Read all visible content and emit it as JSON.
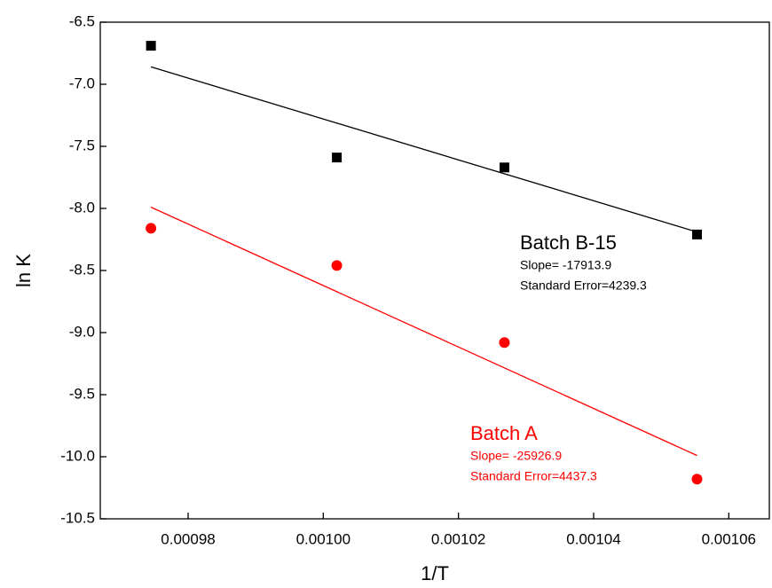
{
  "chart_data": {
    "type": "scatter",
    "xlabel": "1/T",
    "ylabel": "ln K",
    "xlim": [
      0.000967,
      0.001066
    ],
    "ylim": [
      -10.5,
      -6.5
    ],
    "xticks": [
      0.00098,
      {
        "value": 0.001,
        "label": "0.00100"
      },
      0.00102,
      0.00104,
      0.00106
    ],
    "yticks": [
      -6.5,
      {
        "value": -7,
        "label": "-7.0"
      },
      -7.5,
      {
        "value": -8,
        "label": "-8.0"
      },
      -8.5,
      {
        "value": -9,
        "label": "-9.0"
      },
      -9.5,
      {
        "value": -10,
        "label": "-10.0"
      },
      -10.5
    ],
    "x": [
      0.0009745,
      0.001002,
      0.0010268,
      0.0010553
    ],
    "series": [
      {
        "name": "Batch B-15",
        "color": "#000000",
        "marker": "square",
        "values": [
          -6.69,
          -7.59,
          -7.67,
          -8.21
        ],
        "fit": [
          -6.86,
          -8.19
        ],
        "slope_text": "Slope= -17913.9",
        "error_text": "Standard Error=4239.3"
      },
      {
        "name": "Batch A",
        "color": "#ff0000",
        "marker": "circle",
        "values": [
          -8.16,
          -8.46,
          -9.08,
          -10.18
        ],
        "fit": [
          -7.99,
          -9.99
        ],
        "slope_text": "Slope= -25926.9",
        "error_text": "Standard Error=4437.3"
      }
    ]
  }
}
